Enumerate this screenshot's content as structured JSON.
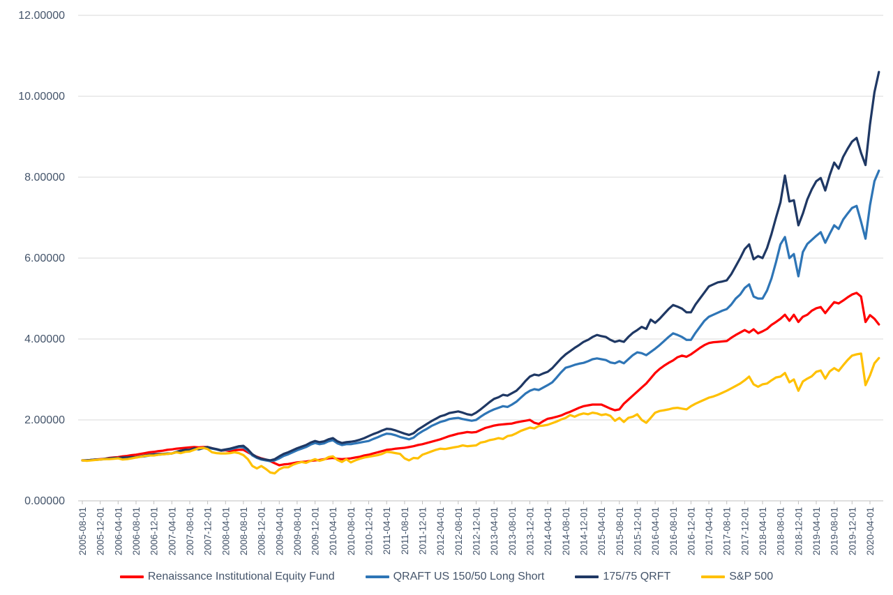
{
  "chart_data": {
    "type": "line",
    "title": "",
    "xlabel": "",
    "ylabel": "",
    "x_unit": "monthly",
    "x_start": "2005-08-01",
    "x_end": "2020-06-01",
    "ylim": [
      0,
      12
    ],
    "grid": "horizontal",
    "legend_position": "bottom-center",
    "y_ticks": [
      {
        "value": 0,
        "label": "0.00000"
      },
      {
        "value": 2,
        "label": "2.00000"
      },
      {
        "value": 4,
        "label": "4.00000"
      },
      {
        "value": 6,
        "label": "6.00000"
      },
      {
        "value": 8,
        "label": "8.00000"
      },
      {
        "value": 10,
        "label": "10.00000"
      },
      {
        "value": 12,
        "label": "12.00000"
      }
    ],
    "x_tick_labels": [
      "2005-08-01",
      "2005-12-01",
      "2006-04-01",
      "2006-08-01",
      "2006-12-01",
      "2007-04-01",
      "2007-08-01",
      "2007-12-01",
      "2008-04-01",
      "2008-08-01",
      "2008-12-01",
      "2009-04-01",
      "2009-08-01",
      "2009-12-01",
      "2010-04-01",
      "2010-08-01",
      "2010-12-01",
      "2011-04-01",
      "2011-08-01",
      "2011-12-01",
      "2012-04-01",
      "2012-08-01",
      "2012-12-01",
      "2013-04-01",
      "2013-08-01",
      "2013-12-01",
      "2014-04-01",
      "2014-08-01",
      "2014-12-01",
      "2015-04-01",
      "2015-08-01",
      "2015-12-01",
      "2016-04-01",
      "2016-08-01",
      "2016-12-01",
      "2017-04-01",
      "2017-08-01",
      "2017-12-01",
      "2018-04-01",
      "2018-08-01",
      "2018-12-01",
      "2019-04-01",
      "2019-08-01",
      "2019-12-01",
      "2020-04-01"
    ],
    "style": {
      "gridline_color": "#D9D9D9",
      "axis_line_color": "#BFBFBF",
      "label_color": "#44546A",
      "background": "#FFFFFF",
      "line_width": 3.25
    },
    "series": [
      {
        "name": "Renaissance Institutional Equity Fund",
        "slug": "renaissance-institutional-equity-fund",
        "color": "#FF0000",
        "values": [
          1.0,
          1.0,
          1.01,
          1.02,
          1.03,
          1.04,
          1.06,
          1.07,
          1.08,
          1.1,
          1.11,
          1.13,
          1.14,
          1.16,
          1.18,
          1.2,
          1.21,
          1.23,
          1.24,
          1.26,
          1.27,
          1.29,
          1.3,
          1.31,
          1.32,
          1.33,
          1.32,
          1.33,
          1.33,
          1.3,
          1.27,
          1.24,
          1.25,
          1.23,
          1.25,
          1.26,
          1.26,
          1.2,
          1.14,
          1.09,
          1.05,
          1.02,
          0.98,
          0.93,
          0.88,
          0.9,
          0.91,
          0.93,
          0.95,
          0.96,
          0.97,
          0.99,
          1.0,
          1.01,
          1.03,
          1.05,
          1.06,
          1.04,
          1.03,
          1.04,
          1.05,
          1.07,
          1.09,
          1.12,
          1.14,
          1.17,
          1.2,
          1.23,
          1.26,
          1.27,
          1.29,
          1.3,
          1.31,
          1.33,
          1.35,
          1.38,
          1.4,
          1.43,
          1.46,
          1.49,
          1.52,
          1.56,
          1.6,
          1.63,
          1.66,
          1.68,
          1.7,
          1.69,
          1.7,
          1.75,
          1.8,
          1.83,
          1.86,
          1.88,
          1.89,
          1.9,
          1.91,
          1.94,
          1.96,
          1.98,
          2.0,
          1.93,
          1.9,
          1.97,
          2.03,
          2.05,
          2.08,
          2.11,
          2.16,
          2.2,
          2.25,
          2.3,
          2.34,
          2.36,
          2.38,
          2.38,
          2.38,
          2.33,
          2.28,
          2.24,
          2.26,
          2.4,
          2.5,
          2.6,
          2.7,
          2.8,
          2.9,
          3.03,
          3.16,
          3.26,
          3.34,
          3.41,
          3.47,
          3.55,
          3.59,
          3.56,
          3.62,
          3.7,
          3.78,
          3.85,
          3.9,
          3.92,
          3.93,
          3.94,
          3.95,
          4.03,
          4.1,
          4.16,
          4.22,
          4.16,
          4.24,
          4.14,
          4.19,
          4.25,
          4.35,
          4.42,
          4.5,
          4.6,
          4.45,
          4.6,
          4.42,
          4.55,
          4.6,
          4.7,
          4.76,
          4.79,
          4.64,
          4.78,
          4.91,
          4.88,
          4.95,
          5.03,
          5.1,
          5.14,
          5.05,
          4.42,
          4.59,
          4.5,
          4.36
        ]
      },
      {
        "name": "QRAFT US 150/50 Long Short",
        "slug": "qraft-us-150-50-long-short",
        "color": "#2E75B6",
        "values": [
          1.0,
          1.0,
          1.01,
          1.01,
          1.02,
          1.03,
          1.05,
          1.05,
          1.06,
          1.06,
          1.07,
          1.07,
          1.07,
          1.09,
          1.1,
          1.12,
          1.13,
          1.14,
          1.15,
          1.16,
          1.17,
          1.2,
          1.23,
          1.25,
          1.26,
          1.29,
          1.27,
          1.3,
          1.32,
          1.29,
          1.27,
          1.24,
          1.26,
          1.27,
          1.3,
          1.33,
          1.32,
          1.24,
          1.12,
          1.06,
          1.02,
          1.0,
          0.98,
          1.0,
          1.05,
          1.11,
          1.15,
          1.2,
          1.25,
          1.29,
          1.33,
          1.39,
          1.43,
          1.4,
          1.42,
          1.47,
          1.5,
          1.42,
          1.38,
          1.4,
          1.4,
          1.42,
          1.44,
          1.46,
          1.48,
          1.53,
          1.57,
          1.62,
          1.66,
          1.65,
          1.62,
          1.58,
          1.55,
          1.52,
          1.56,
          1.65,
          1.72,
          1.78,
          1.85,
          1.9,
          1.95,
          1.98,
          2.02,
          2.04,
          2.05,
          2.02,
          2.0,
          1.98,
          2.0,
          2.08,
          2.15,
          2.21,
          2.26,
          2.3,
          2.34,
          2.32,
          2.38,
          2.45,
          2.55,
          2.65,
          2.72,
          2.76,
          2.74,
          2.8,
          2.86,
          2.93,
          3.05,
          3.18,
          3.29,
          3.32,
          3.36,
          3.39,
          3.41,
          3.45,
          3.5,
          3.52,
          3.5,
          3.48,
          3.42,
          3.4,
          3.45,
          3.4,
          3.5,
          3.6,
          3.67,
          3.65,
          3.6,
          3.68,
          3.76,
          3.85,
          3.95,
          4.05,
          4.14,
          4.1,
          4.05,
          3.98,
          3.98,
          4.15,
          4.3,
          4.45,
          4.55,
          4.6,
          4.65,
          4.7,
          4.74,
          4.85,
          5.0,
          5.1,
          5.26,
          5.35,
          5.05,
          5.0,
          5.0,
          5.2,
          5.5,
          5.9,
          6.34,
          6.52,
          6.0,
          6.1,
          5.55,
          6.15,
          6.35,
          6.45,
          6.55,
          6.64,
          6.38,
          6.6,
          6.81,
          6.72,
          6.95,
          7.1,
          7.24,
          7.29,
          6.9,
          6.48,
          7.3,
          7.9,
          8.16
        ]
      },
      {
        "name": "175/75 QRFT",
        "slug": "175-75-qrft",
        "color": "#1F3864",
        "values": [
          1.0,
          1.0,
          1.01,
          1.02,
          1.02,
          1.04,
          1.05,
          1.06,
          1.06,
          1.07,
          1.07,
          1.08,
          1.08,
          1.1,
          1.12,
          1.14,
          1.15,
          1.16,
          1.16,
          1.17,
          1.17,
          1.21,
          1.24,
          1.26,
          1.26,
          1.3,
          1.28,
          1.31,
          1.33,
          1.3,
          1.28,
          1.25,
          1.27,
          1.29,
          1.32,
          1.35,
          1.36,
          1.27,
          1.15,
          1.08,
          1.04,
          1.02,
          1.0,
          1.03,
          1.1,
          1.16,
          1.2,
          1.25,
          1.3,
          1.34,
          1.38,
          1.44,
          1.48,
          1.45,
          1.47,
          1.52,
          1.55,
          1.47,
          1.43,
          1.45,
          1.46,
          1.48,
          1.51,
          1.55,
          1.6,
          1.65,
          1.69,
          1.74,
          1.78,
          1.77,
          1.74,
          1.7,
          1.66,
          1.63,
          1.67,
          1.76,
          1.83,
          1.9,
          1.97,
          2.03,
          2.09,
          2.12,
          2.17,
          2.19,
          2.21,
          2.18,
          2.14,
          2.12,
          2.18,
          2.26,
          2.35,
          2.44,
          2.52,
          2.56,
          2.62,
          2.6,
          2.66,
          2.72,
          2.83,
          2.96,
          3.07,
          3.12,
          3.1,
          3.15,
          3.19,
          3.28,
          3.4,
          3.52,
          3.62,
          3.7,
          3.78,
          3.85,
          3.93,
          3.98,
          4.05,
          4.1,
          4.07,
          4.05,
          3.98,
          3.93,
          3.96,
          3.93,
          4.05,
          4.15,
          4.22,
          4.3,
          4.25,
          4.48,
          4.4,
          4.5,
          4.62,
          4.74,
          4.84,
          4.8,
          4.75,
          4.66,
          4.66,
          4.85,
          5.0,
          5.15,
          5.3,
          5.35,
          5.4,
          5.42,
          5.45,
          5.6,
          5.8,
          6.0,
          6.22,
          6.34,
          5.97,
          6.05,
          6.0,
          6.25,
          6.6,
          7.0,
          7.38,
          8.04,
          7.4,
          7.43,
          6.81,
          7.1,
          7.45,
          7.7,
          7.9,
          7.98,
          7.67,
          8.05,
          8.36,
          8.21,
          8.5,
          8.7,
          8.88,
          8.97,
          8.6,
          8.3,
          9.3,
          10.1,
          10.6
        ]
      },
      {
        "name": "S&P 500",
        "slug": "sp-500",
        "color": "#FFC000",
        "values": [
          1.0,
          0.99,
          1.0,
          1.01,
          1.02,
          1.03,
          1.03,
          1.04,
          1.05,
          1.02,
          1.03,
          1.05,
          1.07,
          1.09,
          1.11,
          1.12,
          1.12,
          1.14,
          1.15,
          1.16,
          1.17,
          1.2,
          1.18,
          1.21,
          1.22,
          1.26,
          1.3,
          1.31,
          1.28,
          1.2,
          1.18,
          1.17,
          1.17,
          1.18,
          1.2,
          1.18,
          1.13,
          1.03,
          0.86,
          0.8,
          0.86,
          0.79,
          0.7,
          0.68,
          0.78,
          0.83,
          0.83,
          0.89,
          0.93,
          0.96,
          0.94,
          0.99,
          1.03,
          0.99,
          1.02,
          1.08,
          1.1,
          1.01,
          0.96,
          1.03,
          0.95,
          1.0,
          1.04,
          1.07,
          1.09,
          1.11,
          1.13,
          1.16,
          1.21,
          1.2,
          1.18,
          1.16,
          1.05,
          1.0,
          1.06,
          1.05,
          1.14,
          1.18,
          1.22,
          1.26,
          1.29,
          1.28,
          1.3,
          1.32,
          1.34,
          1.37,
          1.35,
          1.36,
          1.37,
          1.44,
          1.46,
          1.5,
          1.52,
          1.55,
          1.53,
          1.6,
          1.62,
          1.67,
          1.73,
          1.77,
          1.81,
          1.79,
          1.85,
          1.86,
          1.88,
          1.92,
          1.96,
          2.01,
          2.05,
          2.12,
          2.08,
          2.13,
          2.16,
          2.14,
          2.18,
          2.16,
          2.12,
          2.14,
          2.1,
          1.98,
          2.05,
          1.95,
          2.05,
          2.08,
          2.14,
          2.0,
          1.93,
          2.05,
          2.18,
          2.22,
          2.24,
          2.26,
          2.29,
          2.3,
          2.28,
          2.26,
          2.34,
          2.4,
          2.45,
          2.5,
          2.55,
          2.58,
          2.62,
          2.67,
          2.72,
          2.78,
          2.84,
          2.9,
          2.98,
          3.07,
          2.88,
          2.82,
          2.88,
          2.9,
          2.98,
          3.05,
          3.07,
          3.16,
          2.93,
          3.0,
          2.72,
          2.95,
          3.02,
          3.08,
          3.19,
          3.22,
          3.02,
          3.2,
          3.28,
          3.21,
          3.35,
          3.48,
          3.59,
          3.62,
          3.64,
          2.86,
          3.1,
          3.4,
          3.53
        ]
      }
    ]
  }
}
